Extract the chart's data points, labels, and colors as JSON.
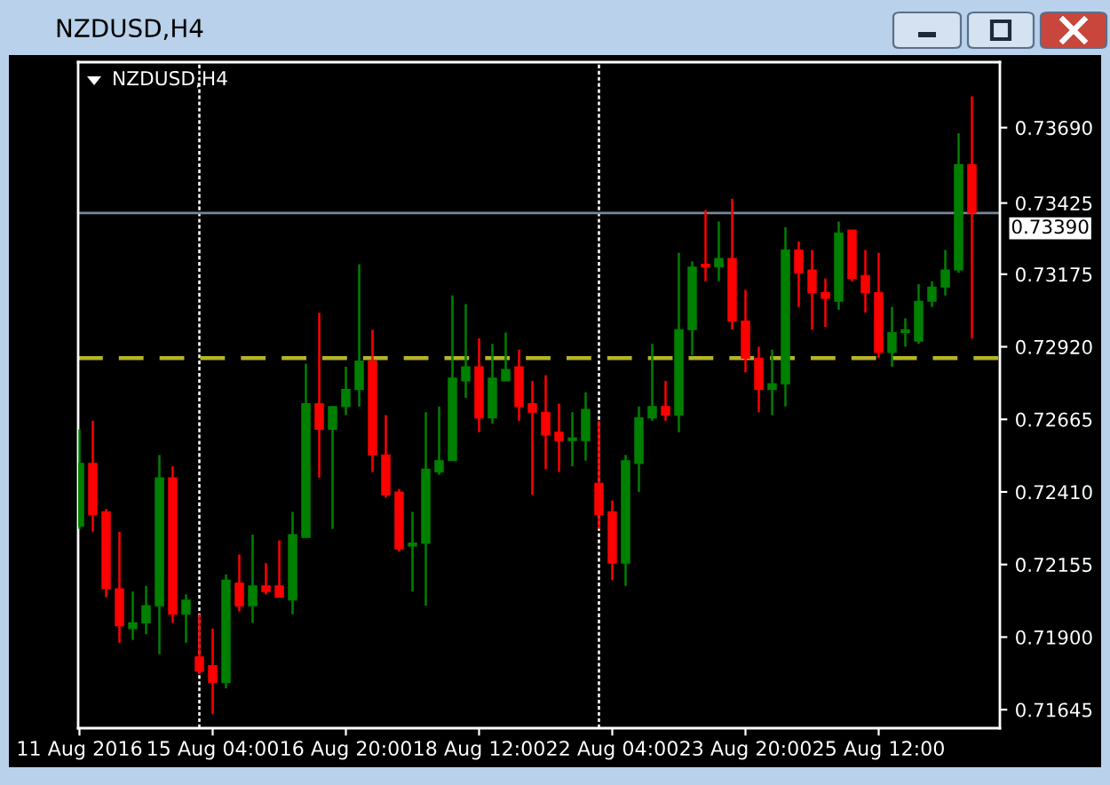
{
  "chart_data": {
    "type": "candlestick",
    "title": "NZDUSD,H4",
    "subtitle": "NZDUSD,H4",
    "categories": [
      "11 Aug 2016",
      null,
      null,
      null,
      null,
      null,
      null,
      null,
      null,
      null,
      "15 Aug 04:00",
      null,
      null,
      null,
      null,
      null,
      null,
      null,
      null,
      null,
      "16 Aug 20:00",
      null,
      null,
      null,
      null,
      null,
      null,
      null,
      null,
      null,
      "18 Aug 12:00",
      null,
      null,
      null,
      null,
      null,
      null,
      null,
      null,
      null,
      "22 Aug 04:00",
      null,
      null,
      null,
      null,
      null,
      null,
      null,
      null,
      null,
      "23 Aug 20:00",
      null,
      null,
      null,
      null,
      null,
      null,
      null,
      null,
      null,
      "25 Aug 12:00",
      null,
      null,
      null,
      null,
      null,
      null,
      null
    ],
    "ohlc": [
      [
        0.7229,
        0.7263,
        0.7228,
        0.7251
      ],
      [
        0.7251,
        0.7266,
        0.7227,
        0.7233
      ],
      [
        0.7234,
        0.7235,
        0.7204,
        0.7207
      ],
      [
        0.7207,
        0.7227,
        0.7188,
        0.7194
      ],
      [
        0.7193,
        0.7206,
        0.7189,
        0.7195
      ],
      [
        0.7195,
        0.7208,
        0.7191,
        0.7201
      ],
      [
        0.7201,
        0.7254,
        0.7184,
        0.7246
      ],
      [
        0.7246,
        0.725,
        0.7195,
        0.7198
      ],
      [
        0.7198,
        0.7205,
        0.7188,
        0.7203
      ],
      [
        0.7183,
        0.7198,
        0.7177,
        0.7178
      ],
      [
        0.718,
        0.7193,
        0.7163,
        0.7174
      ],
      [
        0.7174,
        0.7212,
        0.7172,
        0.721
      ],
      [
        0.7209,
        0.7219,
        0.7199,
        0.7201
      ],
      [
        0.7201,
        0.7226,
        0.7195,
        0.7208
      ],
      [
        0.7208,
        0.7216,
        0.7205,
        0.7206
      ],
      [
        0.7208,
        0.7224,
        0.7204,
        0.7204
      ],
      [
        0.7203,
        0.7234,
        0.7198,
        0.7226
      ],
      [
        0.7225,
        0.7286,
        0.7225,
        0.7272
      ],
      [
        0.7272,
        0.7304,
        0.7246,
        0.7263
      ],
      [
        0.7263,
        0.7271,
        0.7228,
        0.7271
      ],
      [
        0.7271,
        0.7285,
        0.7268,
        0.7277
      ],
      [
        0.7277,
        0.7321,
        0.7271,
        0.7287
      ],
      [
        0.7287,
        0.7298,
        0.7248,
        0.7254
      ],
      [
        0.7254,
        0.7268,
        0.7239,
        0.724
      ],
      [
        0.7241,
        0.7242,
        0.722,
        0.7221
      ],
      [
        0.7222,
        0.7234,
        0.7206,
        0.7223
      ],
      [
        0.7223,
        0.7269,
        0.7201,
        0.7249
      ],
      [
        0.7248,
        0.7271,
        0.7247,
        0.7252
      ],
      [
        0.7252,
        0.731,
        0.7252,
        0.7281
      ],
      [
        0.728,
        0.7307,
        0.7274,
        0.7285
      ],
      [
        0.7285,
        0.7295,
        0.7262,
        0.7267
      ],
      [
        0.7267,
        0.7293,
        0.7265,
        0.7281
      ],
      [
        0.728,
        0.7297,
        0.728,
        0.7284
      ],
      [
        0.7285,
        0.7291,
        0.7266,
        0.7271
      ],
      [
        0.7272,
        0.728,
        0.724,
        0.7269
      ],
      [
        0.7269,
        0.7282,
        0.7249,
        0.7261
      ],
      [
        0.7262,
        0.7272,
        0.7248,
        0.7259
      ],
      [
        0.7259,
        0.7269,
        0.725,
        0.726
      ],
      [
        0.7259,
        0.7276,
        0.7252,
        0.727
      ],
      [
        0.7244,
        0.7266,
        0.7228,
        0.7233
      ],
      [
        0.7234,
        0.7238,
        0.721,
        0.7216
      ],
      [
        0.7216,
        0.7254,
        0.7208,
        0.7252
      ],
      [
        0.7251,
        0.7271,
        0.7241,
        0.7267
      ],
      [
        0.7267,
        0.7293,
        0.7266,
        0.7271
      ],
      [
        0.7271,
        0.728,
        0.7266,
        0.7268
      ],
      [
        0.7268,
        0.7325,
        0.7262,
        0.7298
      ],
      [
        0.7298,
        0.7322,
        0.7289,
        0.732
      ],
      [
        0.7321,
        0.734,
        0.7315,
        0.732
      ],
      [
        0.732,
        0.7336,
        0.7315,
        0.7323
      ],
      [
        0.7323,
        0.7344,
        0.7298,
        0.7301
      ],
      [
        0.7301,
        0.7312,
        0.7283,
        0.7288
      ],
      [
        0.7288,
        0.7292,
        0.7269,
        0.7277
      ],
      [
        0.7277,
        0.7291,
        0.7268,
        0.7279
      ],
      [
        0.7279,
        0.7334,
        0.7271,
        0.7326
      ],
      [
        0.7326,
        0.7329,
        0.7306,
        0.7318
      ],
      [
        0.7319,
        0.7326,
        0.7298,
        0.7311
      ],
      [
        0.7311,
        0.7316,
        0.7299,
        0.7309
      ],
      [
        0.7308,
        0.7336,
        0.7305,
        0.7332
      ],
      [
        0.7333,
        0.7333,
        0.7315,
        0.7316
      ],
      [
        0.7317,
        0.7326,
        0.7304,
        0.7311
      ],
      [
        0.7311,
        0.7325,
        0.7288,
        0.729
      ],
      [
        0.729,
        0.7306,
        0.7285,
        0.7297
      ],
      [
        0.7297,
        0.7302,
        0.7292,
        0.7298
      ],
      [
        0.7294,
        0.7314,
        0.7293,
        0.7308
      ],
      [
        0.7308,
        0.7315,
        0.7306,
        0.7313
      ],
      [
        0.7313,
        0.7326,
        0.731,
        0.7319
      ],
      [
        0.7319,
        0.7367,
        0.7318,
        0.7356
      ],
      [
        0.7356,
        0.738,
        0.7295,
        0.7339
      ]
    ],
    "colors": [
      "#008000",
      "#ff0000",
      "#ff0000",
      "#ff0000",
      "#008000",
      "#008000",
      "#008000",
      "#ff0000",
      "#008000",
      "#ff0000",
      "#ff0000",
      "#008000",
      "#ff0000",
      "#008000",
      "#ff0000",
      "#ff0000",
      "#008000",
      "#008000",
      "#ff0000",
      "#008000",
      "#008000",
      "#008000",
      "#ff0000",
      "#ff0000",
      "#ff0000",
      "#008000",
      "#008000",
      "#008000",
      "#008000",
      "#008000",
      "#ff0000",
      "#008000",
      "#008000",
      "#ff0000",
      "#ff0000",
      "#ff0000",
      "#ff0000",
      "#008000",
      "#008000",
      "#ff0000",
      "#ff0000",
      "#008000",
      "#008000",
      "#008000",
      "#ff0000",
      "#008000",
      "#008000",
      "#ff0000",
      "#008000",
      "#ff0000",
      "#ff0000",
      "#ff0000",
      "#008000",
      "#008000",
      "#ff0000",
      "#ff0000",
      "#ff0000",
      "#008000",
      "#ff0000",
      "#ff0000",
      "#ff0000",
      "#008000",
      "#008000",
      "#008000",
      "#008000",
      "#008000",
      "#008000",
      "#ff0000"
    ],
    "ylim": [
      0.7158,
      0.7392
    ],
    "yticks": [
      {
        "value": 0.7369,
        "label": "0.73690"
      },
      {
        "value": 0.73425,
        "label": "0.73425"
      },
      {
        "value": 0.73175,
        "label": "0.73175"
      },
      {
        "value": 0.7292,
        "label": "0.72920"
      },
      {
        "value": 0.72665,
        "label": "0.72665"
      },
      {
        "value": 0.7241,
        "label": "0.72410"
      },
      {
        "value": 0.72155,
        "label": "0.72155"
      },
      {
        "value": 0.719,
        "label": "0.71900"
      },
      {
        "value": 0.71645,
        "label": "0.71645"
      }
    ],
    "ref_lines": [
      {
        "axis": "y",
        "value": 0.7339,
        "label": "0.73390",
        "color": "#778899",
        "line_style": "solid"
      },
      {
        "axis": "y",
        "value": 0.7288,
        "color": "#b4b428",
        "line_style": "dashed"
      }
    ]
  }
}
